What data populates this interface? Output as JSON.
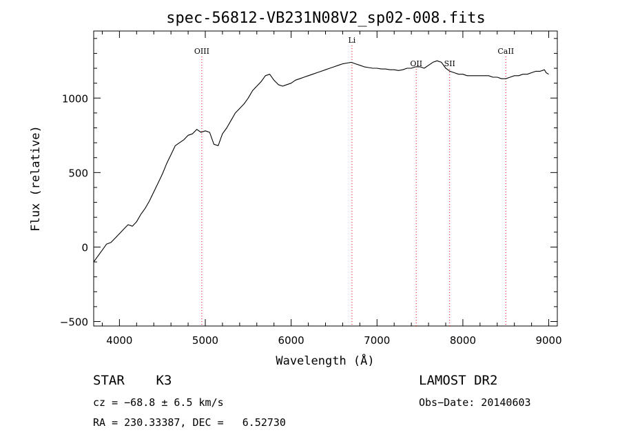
{
  "chart_data": {
    "type": "line",
    "title": "spec-56812-VB231N08V2_sp02-008.fits",
    "xlabel": "Wavelength (Å)",
    "ylabel": "Flux (relative)",
    "xlim": [
      3700,
      9100
    ],
    "ylim": [
      -530,
      1450
    ],
    "x_ticks": [
      4000,
      5000,
      6000,
      7000,
      8000,
      9000
    ],
    "y_ticks": [
      -500,
      0,
      500,
      1000
    ],
    "x_minor_step": 200,
    "y_minor_step": 100,
    "grid": false,
    "line_color": "#000000",
    "marker_color": "#ff0000",
    "series": [
      {
        "x": [
          3700,
          3750,
          3800,
          3850,
          3900,
          3950,
          4000,
          4050,
          4100,
          4150,
          4200,
          4250,
          4300,
          4350,
          4400,
          4450,
          4500,
          4550,
          4600,
          4650,
          4700,
          4750,
          4800,
          4850,
          4900,
          4950,
          5000,
          5050,
          5100,
          5150,
          5200,
          5250,
          5300,
          5350,
          5400,
          5450,
          5500,
          5550,
          5600,
          5650,
          5700,
          5750,
          5800,
          5850,
          5900,
          5950,
          6000,
          6050,
          6100,
          6150,
          6200,
          6250,
          6300,
          6350,
          6400,
          6450,
          6500,
          6550,
          6600,
          6650,
          6700,
          6750,
          6800,
          6850,
          6900,
          6950,
          7000,
          7050,
          7100,
          7150,
          7200,
          7250,
          7300,
          7350,
          7400,
          7450,
          7500,
          7550,
          7600,
          7650,
          7700,
          7750,
          7800,
          7850,
          7900,
          7950,
          8000,
          8050,
          8100,
          8150,
          8200,
          8250,
          8300,
          8350,
          8400,
          8450,
          8500,
          8550,
          8600,
          8650,
          8700,
          8750,
          8800,
          8850,
          8900,
          8950,
          8970,
          9000
        ],
        "y": [
          -100,
          -60,
          -20,
          20,
          30,
          60,
          90,
          120,
          150,
          140,
          170,
          220,
          260,
          310,
          370,
          430,
          490,
          560,
          620,
          680,
          700,
          720,
          750,
          760,
          790,
          770,
          780,
          770,
          690,
          680,
          760,
          800,
          850,
          900,
          930,
          960,
          1000,
          1050,
          1080,
          1110,
          1150,
          1160,
          1120,
          1090,
          1080,
          1090,
          1100,
          1120,
          1130,
          1140,
          1150,
          1160,
          1170,
          1180,
          1190,
          1200,
          1210,
          1220,
          1230,
          1235,
          1240,
          1230,
          1220,
          1210,
          1205,
          1200,
          1200,
          1195,
          1195,
          1190,
          1190,
          1185,
          1190,
          1200,
          1200,
          1210,
          1210,
          1200,
          1220,
          1240,
          1250,
          1240,
          1200,
          1180,
          1170,
          1160,
          1160,
          1150,
          1150,
          1150,
          1150,
          1150,
          1150,
          1140,
          1140,
          1130,
          1130,
          1140,
          1150,
          1150,
          1160,
          1160,
          1170,
          1180,
          1180,
          1190,
          1170,
          1160
        ]
      }
    ],
    "spectral_lines": [
      {
        "label": "OIII",
        "x": 4959
      },
      {
        "label": "Li",
        "x": 6708
      },
      {
        "label": "OII",
        "x": 7457
      },
      {
        "label": "SII",
        "x": 7846
      },
      {
        "label": "CaII",
        "x": 8500
      }
    ],
    "info": {
      "class": "STAR    K3",
      "cz": "cz = −68.8 ± 6.5 km/s",
      "coords": "RA = 230.33387, DEC =   6.52730",
      "survey": "LAMOST DR2",
      "obs_date": "Obs−Date: 20140603"
    }
  }
}
